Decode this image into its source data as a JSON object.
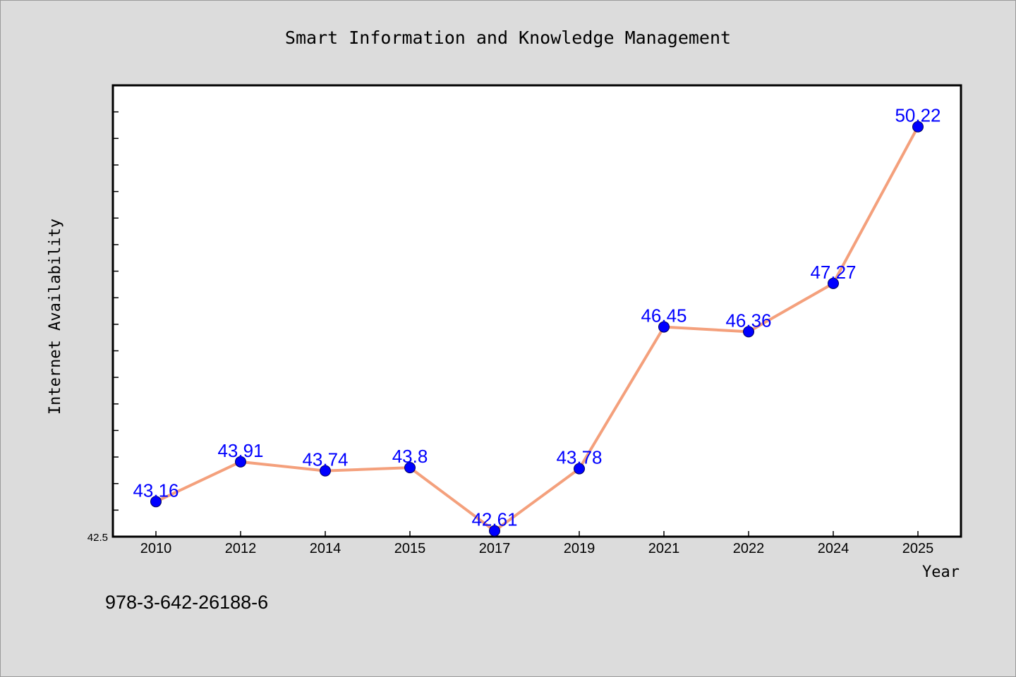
{
  "footer": {
    "text": "978-3-642-26188-6"
  },
  "colors": {
    "background": "#dcdcdc",
    "plot_background": "#ffffff",
    "line": "#f4a07c",
    "marker": "#0000ff",
    "data_label": "#0000ff"
  },
  "chart_data": {
    "type": "line",
    "title": "Smart Information and Knowledge Management",
    "xlabel": "Year",
    "ylabel": "Internet Availability",
    "categories": [
      "2010",
      "2012",
      "2014",
      "2015",
      "2017",
      "2019",
      "2021",
      "2022",
      "2024",
      "2025"
    ],
    "series": [
      {
        "values": [
          43.16,
          43.91,
          43.74,
          43.8,
          42.61,
          43.78,
          46.45,
          46.36,
          47.27,
          50.22
        ],
        "labels": [
          "43.16",
          "43.91",
          "43.74",
          "43.8",
          "42.61",
          "43.78",
          "46.45",
          "46.36",
          "47.27",
          "50.22"
        ]
      }
    ],
    "ylim": [
      42.5,
      51.0
    ],
    "y_tick_labels": [
      "42.5"
    ],
    "grid": false,
    "legend": "none"
  }
}
